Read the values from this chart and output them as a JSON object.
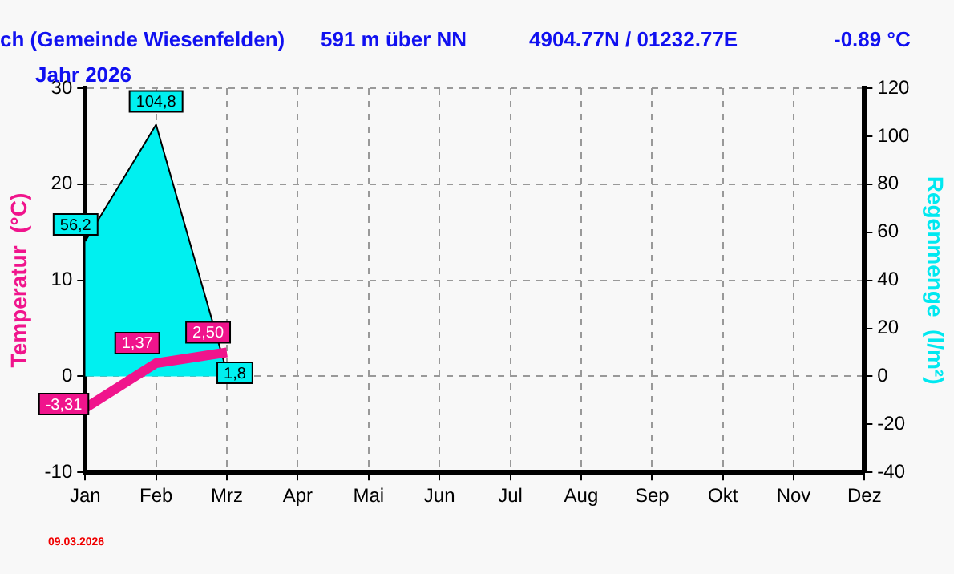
{
  "chart_data": {
    "type": "line",
    "title": "ch (Gemeinde Wiesenfelden)",
    "subtitle": "Jahr  2026",
    "annotations": [
      "591 m über NN",
      "4904.77N / 01232.77E",
      "-0.89 °C",
      "09.03.2026"
    ],
    "ylabel": "Temperatur  (°C)",
    "y2label": "Regenmenge  (l/m²)",
    "categories": [
      "Jan",
      "Feb",
      "Mrz",
      "Apr",
      "Mai",
      "Jun",
      "Jul",
      "Aug",
      "Sep",
      "Okt",
      "Nov",
      "Dez"
    ],
    "series": [
      {
        "type": "area",
        "axis": "y2",
        "color": "#00f0f0",
        "values": [
          56.2,
          104.8,
          1.8,
          null,
          null,
          null,
          null,
          null,
          null,
          null,
          null,
          null
        ],
        "value_labels": [
          "56,2",
          "104,8",
          "1,8",
          null,
          null,
          null,
          null,
          null,
          null,
          null,
          null,
          null
        ]
      },
      {
        "type": "line",
        "color": "#f0148c",
        "values": [
          -3.31,
          1.37,
          2.5,
          null,
          null,
          null,
          null,
          null,
          null,
          null,
          null,
          null
        ],
        "value_labels": [
          "-3,31",
          "1,37",
          "2,50",
          null,
          null,
          null,
          null,
          null,
          null,
          null,
          null,
          null
        ]
      }
    ],
    "ylim": [
      -10,
      30
    ],
    "yticks": [
      -10,
      0,
      10,
      20,
      30
    ],
    "y2lim": [
      -40,
      120
    ],
    "y2ticks": [
      -40,
      -20,
      0,
      20,
      40,
      60,
      80,
      100,
      120
    ],
    "grid": true,
    "legend": false,
    "marker": "none",
    "line_style": "solid"
  }
}
